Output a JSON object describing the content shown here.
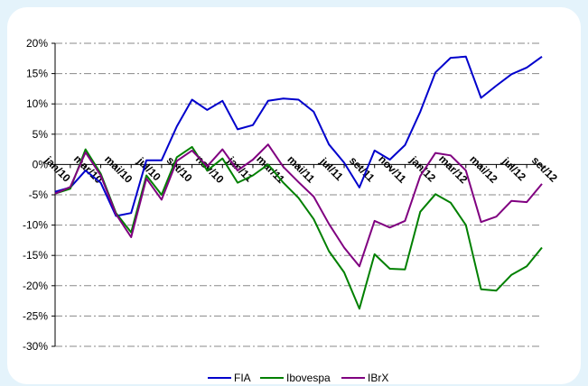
{
  "chart_data": {
    "type": "line",
    "x": [
      "jan/10",
      "fev/10",
      "mar/10",
      "abr/10",
      "mai/10",
      "jun/10",
      "jul/10",
      "ago/10",
      "set/10",
      "out/10",
      "nov/10",
      "dez/10",
      "jan/11",
      "fev/11",
      "mar/11",
      "abr/11",
      "mai/11",
      "jun/11",
      "jul/11",
      "ago/11",
      "set/11",
      "out/11",
      "nov/11",
      "dez/11",
      "jan/12",
      "fev/12",
      "mar/12",
      "abr/12",
      "mai/12",
      "jun/12",
      "jul/12",
      "ago/12",
      "set/12"
    ],
    "xtick_labels": [
      "jan/10",
      "mar/10",
      "mai/10",
      "jul/10",
      "set/10",
      "nov/10",
      "jan/11",
      "mar/11",
      "mai/11",
      "jul/11",
      "set/11",
      "nov/11",
      "jan/12",
      "mar/12",
      "mai/12",
      "jul/12",
      "set/12"
    ],
    "ylim": [
      -30,
      20
    ],
    "yticks": [
      -30,
      -25,
      -20,
      -15,
      -10,
      -5,
      0,
      5,
      10,
      15,
      20
    ],
    "ytick_labels": [
      "-30%",
      "-25%",
      "-20%",
      "-15%",
      "-10%",
      "-5%",
      "0%",
      "5%",
      "10%",
      "15%",
      "20%"
    ],
    "grid": "horizontal-dashed",
    "legend_position": "bottom",
    "series": [
      {
        "name": "FIA",
        "color": "#0000cc",
        "values": [
          -4.5,
          -3.8,
          -1.0,
          -3.0,
          -8.5,
          -8.0,
          0.7,
          0.7,
          6.3,
          10.7,
          9.0,
          10.5,
          5.8,
          6.5,
          10.5,
          10.9,
          10.7,
          8.7,
          3.3,
          0.3,
          -3.8,
          2.3,
          0.8,
          3.2,
          8.7,
          15.2,
          17.6,
          17.8,
          11.0,
          13.0,
          14.9,
          16.0,
          17.8
        ]
      },
      {
        "name": "Ibovespa",
        "color": "#008000",
        "values": [
          -4.8,
          -4.0,
          2.5,
          -1.5,
          -8.0,
          -11.2,
          -1.8,
          -5.0,
          1.2,
          2.9,
          -1.0,
          1.0,
          -3.0,
          -1.8,
          0.0,
          -3.0,
          -5.5,
          -9.0,
          -14.3,
          -17.8,
          -23.8,
          -14.8,
          -17.2,
          -17.3,
          -7.8,
          -4.9,
          -6.3,
          -10.0,
          -20.6,
          -20.8,
          -18.2,
          -16.8,
          -13.7
        ]
      },
      {
        "name": "IBrX",
        "color": "#800080",
        "values": [
          -4.8,
          -3.7,
          2.0,
          -1.8,
          -8.2,
          -12.0,
          -2.3,
          -5.8,
          0.6,
          2.3,
          -0.3,
          2.5,
          -1.0,
          0.8,
          3.3,
          -0.4,
          -2.9,
          -5.3,
          -9.8,
          -13.7,
          -16.8,
          -9.3,
          -10.4,
          -9.3,
          -1.9,
          1.9,
          1.5,
          -1.0,
          -9.5,
          -8.6,
          -6.0,
          -6.2,
          -3.2
        ]
      }
    ]
  }
}
